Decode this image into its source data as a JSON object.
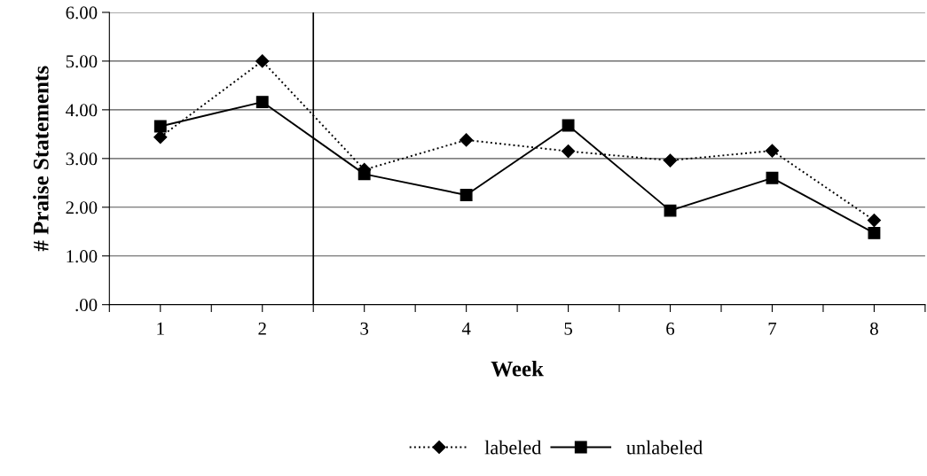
{
  "chart_data": {
    "type": "line",
    "xlabel": "Week",
    "ylabel": "# Praise Statements",
    "x": [
      1,
      2,
      3,
      4,
      5,
      6,
      7,
      8
    ],
    "xlim": [
      0.5,
      8.5
    ],
    "xticks": [
      1,
      2,
      3,
      4,
      5,
      6,
      7,
      8,
      {
        "value": 0.5,
        "label": null
      },
      {
        "value": 1.5,
        "label": null
      },
      {
        "value": 2.5,
        "label": null
      },
      {
        "value": 3.5,
        "label": null
      },
      {
        "value": 4.5,
        "label": null
      },
      {
        "value": 5.5,
        "label": null
      },
      {
        "value": 6.5,
        "label": null
      },
      {
        "value": 7.5,
        "label": null
      },
      {
        "value": 8.5,
        "label": null
      }
    ],
    "ylim": [
      0,
      6
    ],
    "yticks": [
      {
        "value": 0,
        "label": ".00"
      },
      {
        "value": 1,
        "label": "1.00"
      },
      {
        "value": 2,
        "label": "2.00"
      },
      {
        "value": 3,
        "label": "3.00"
      },
      {
        "value": 4,
        "label": "4.00"
      },
      {
        "value": 5,
        "label": "5.00"
      },
      {
        "value": 6,
        "label": "6.00"
      }
    ],
    "grid": "y",
    "legend": "bottom",
    "ref_lines": [
      {
        "axis": "x",
        "value": 2.5,
        "color": "#000000",
        "line_style": "solid"
      }
    ],
    "series": [
      {
        "name": "labeled",
        "color": "#000000",
        "marker": "diamond",
        "line_style": "dotted",
        "values": [
          3.44,
          5.0,
          2.77,
          3.38,
          3.15,
          2.96,
          3.16,
          1.73
        ]
      },
      {
        "name": "unlabeled",
        "color": "#000000",
        "marker": "square",
        "line_style": "solid",
        "values": [
          3.66,
          4.16,
          2.68,
          2.25,
          3.68,
          1.93,
          2.6,
          1.47
        ]
      }
    ]
  }
}
